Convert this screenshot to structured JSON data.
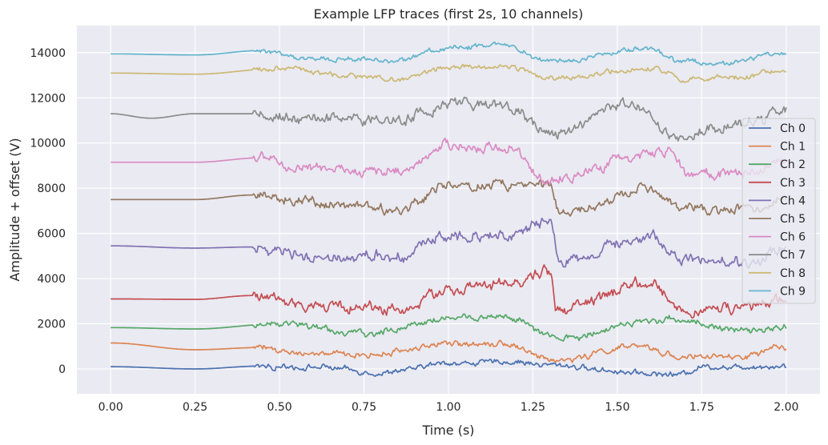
{
  "chart_data": {
    "type": "line",
    "title": "Example LFP traces (first 2s, 10 channels)",
    "xlabel": "Time (s)",
    "ylabel": "Amplitude + offset (V)",
    "xlim": [
      -0.1,
      2.1
    ],
    "ylim": [
      -1100,
      15200
    ],
    "xticks": [
      0.0,
      0.25,
      0.5,
      0.75,
      1.0,
      1.25,
      1.5,
      1.75,
      2.0
    ],
    "xtick_labels": [
      "0.00",
      "0.25",
      "0.50",
      "0.75",
      "1.00",
      "1.25",
      "1.50",
      "1.75",
      "2.00"
    ],
    "yticks": [
      0,
      2000,
      4000,
      6000,
      8000,
      10000,
      12000,
      14000
    ],
    "ytick_labels": [
      "0",
      "2000",
      "4000",
      "6000",
      "8000",
      "10000",
      "12000",
      "14000"
    ],
    "grid": true,
    "legend_position": "right",
    "background": "#eaeaf2",
    "series": [
      {
        "name": "Ch 0",
        "color": "#4c72b0",
        "baseline": 0,
        "amplitude": 130,
        "points": [
          [
            0.0,
            100
          ],
          [
            0.25,
            0
          ],
          [
            0.45,
            130
          ],
          [
            0.6,
            80
          ],
          [
            0.8,
            -200
          ],
          [
            1.0,
            250
          ],
          [
            1.17,
            300
          ],
          [
            1.3,
            200
          ],
          [
            1.5,
            -100
          ],
          [
            1.68,
            -250
          ],
          [
            1.75,
            100
          ],
          [
            2.0,
            120
          ]
        ]
      },
      {
        "name": "Ch 1",
        "color": "#dd8452",
        "baseline": 1000,
        "amplitude": 140,
        "points": [
          [
            0.0,
            1150
          ],
          [
            0.25,
            850
          ],
          [
            0.45,
            950
          ],
          [
            0.55,
            700
          ],
          [
            0.75,
            600
          ],
          [
            1.0,
            1100
          ],
          [
            1.17,
            1150
          ],
          [
            1.31,
            350
          ],
          [
            1.55,
            1000
          ],
          [
            1.7,
            550
          ],
          [
            1.85,
            500
          ],
          [
            2.0,
            950
          ]
        ]
      },
      {
        "name": "Ch 2",
        "color": "#55a868",
        "baseline": 1800,
        "amplitude": 160,
        "points": [
          [
            0.0,
            1830
          ],
          [
            0.25,
            1770
          ],
          [
            0.5,
            2000
          ],
          [
            0.75,
            1550
          ],
          [
            1.0,
            2250
          ],
          [
            1.17,
            2300
          ],
          [
            1.33,
            1300
          ],
          [
            1.55,
            2000
          ],
          [
            1.65,
            2200
          ],
          [
            1.9,
            1650
          ],
          [
            2.0,
            1900
          ]
        ]
      },
      {
        "name": "Ch 3",
        "color": "#c44e52",
        "baseline": 3100,
        "amplitude": 260,
        "points": [
          [
            0.0,
            3100
          ],
          [
            0.25,
            3080
          ],
          [
            0.42,
            3250
          ],
          [
            0.6,
            2800
          ],
          [
            0.85,
            2650
          ],
          [
            1.0,
            3500
          ],
          [
            1.17,
            3700
          ],
          [
            1.3,
            4300
          ],
          [
            1.32,
            2650
          ],
          [
            1.6,
            3700
          ],
          [
            1.7,
            2600
          ],
          [
            1.9,
            2700
          ],
          [
            2.0,
            3050
          ]
        ]
      },
      {
        "name": "Ch 4",
        "color": "#8172b3",
        "baseline": 5400,
        "amplitude": 260,
        "points": [
          [
            0.0,
            5450
          ],
          [
            0.25,
            5350
          ],
          [
            0.42,
            5400
          ],
          [
            0.6,
            5000
          ],
          [
            0.85,
            5000
          ],
          [
            1.0,
            5950
          ],
          [
            1.17,
            5950
          ],
          [
            1.3,
            6500
          ],
          [
            1.33,
            4700
          ],
          [
            1.6,
            5900
          ],
          [
            1.7,
            4750
          ],
          [
            1.9,
            4700
          ],
          [
            2.0,
            5400
          ]
        ]
      },
      {
        "name": "Ch 5",
        "color": "#937860",
        "baseline": 7500,
        "amplitude": 230,
        "points": [
          [
            0.0,
            7500
          ],
          [
            0.25,
            7500
          ],
          [
            0.42,
            7700
          ],
          [
            0.6,
            7400
          ],
          [
            0.85,
            7050
          ],
          [
            1.0,
            8100
          ],
          [
            1.17,
            8150
          ],
          [
            1.3,
            8150
          ],
          [
            1.33,
            6850
          ],
          [
            1.6,
            7900
          ],
          [
            1.7,
            7000
          ],
          [
            1.9,
            7050
          ],
          [
            2.0,
            7550
          ]
        ]
      },
      {
        "name": "Ch 6",
        "color": "#da8bc3",
        "baseline": 9150,
        "amplitude": 240,
        "points": [
          [
            0.0,
            9150
          ],
          [
            0.25,
            9150
          ],
          [
            0.45,
            9350
          ],
          [
            0.55,
            8850
          ],
          [
            0.85,
            8750
          ],
          [
            1.0,
            9800
          ],
          [
            1.17,
            9850
          ],
          [
            1.3,
            8250
          ],
          [
            1.5,
            9200
          ],
          [
            1.65,
            9650
          ],
          [
            1.7,
            8700
          ],
          [
            1.85,
            8600
          ],
          [
            2.0,
            9200
          ]
        ]
      },
      {
        "name": "Ch 7",
        "color": "#8c8c8c",
        "baseline": 11300,
        "amplitude": 260,
        "points": [
          [
            0.0,
            11300
          ],
          [
            0.12,
            11100
          ],
          [
            0.25,
            11300
          ],
          [
            0.42,
            11300
          ],
          [
            0.6,
            11050
          ],
          [
            0.85,
            11000
          ],
          [
            1.0,
            11750
          ],
          [
            1.17,
            11750
          ],
          [
            1.3,
            10350
          ],
          [
            1.55,
            11800
          ],
          [
            1.68,
            10350
          ],
          [
            1.9,
            10850
          ],
          [
            2.0,
            11400
          ]
        ]
      },
      {
        "name": "Ch 8",
        "color": "#ccb974",
        "baseline": 13100,
        "amplitude": 120,
        "points": [
          [
            0.0,
            13100
          ],
          [
            0.25,
            13050
          ],
          [
            0.5,
            13300
          ],
          [
            0.75,
            12950
          ],
          [
            0.85,
            12800
          ],
          [
            1.0,
            13350
          ],
          [
            1.17,
            13400
          ],
          [
            1.3,
            12850
          ],
          [
            1.6,
            13350
          ],
          [
            1.7,
            12800
          ],
          [
            1.85,
            12900
          ],
          [
            2.0,
            13250
          ]
        ]
      },
      {
        "name": "Ch 9",
        "color": "#64b5cd",
        "baseline": 13950,
        "amplitude": 120,
        "points": [
          [
            0.0,
            13950
          ],
          [
            0.25,
            13900
          ],
          [
            0.45,
            14100
          ],
          [
            0.6,
            13750
          ],
          [
            0.85,
            13650
          ],
          [
            1.0,
            14250
          ],
          [
            1.17,
            14300
          ],
          [
            1.3,
            13600
          ],
          [
            1.6,
            14200
          ],
          [
            1.68,
            13650
          ],
          [
            1.8,
            13550
          ],
          [
            2.0,
            14000
          ]
        ]
      }
    ]
  }
}
